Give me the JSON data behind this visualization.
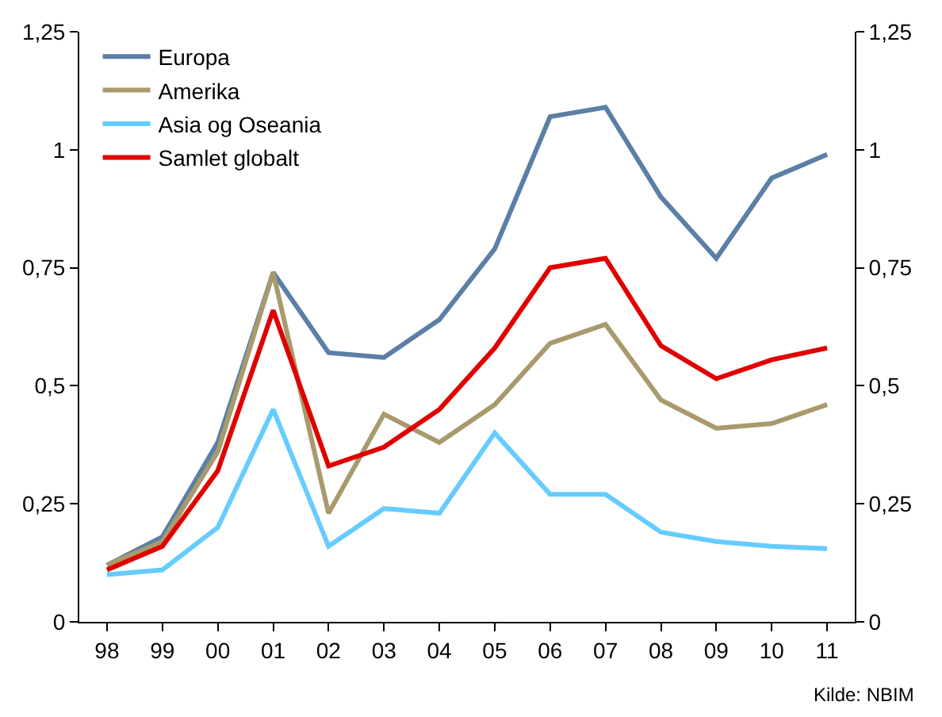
{
  "chart_data": {
    "type": "line",
    "categories": [
      "98",
      "99",
      "00",
      "01",
      "02",
      "03",
      "04",
      "05",
      "06",
      "07",
      "08",
      "09",
      "10",
      "11"
    ],
    "series": [
      {
        "name": "Europa",
        "color": "#5b7fa6",
        "values": [
          0.12,
          0.18,
          0.38,
          0.74,
          0.57,
          0.56,
          0.64,
          0.79,
          1.07,
          1.09,
          0.9,
          0.77,
          0.94,
          0.99
        ]
      },
      {
        "name": "Amerika",
        "color": "#a89a6c",
        "values": [
          0.12,
          0.17,
          0.36,
          0.74,
          0.23,
          0.44,
          0.38,
          0.46,
          0.59,
          0.63,
          0.47,
          0.41,
          0.42,
          0.46
        ]
      },
      {
        "name": "Asia og Oseania",
        "color": "#66ccff",
        "values": [
          0.1,
          0.11,
          0.2,
          0.45,
          0.16,
          0.24,
          0.23,
          0.4,
          0.27,
          0.27,
          0.19,
          0.17,
          0.16,
          0.155
        ]
      },
      {
        "name": "Samlet globalt",
        "color": "#e00000",
        "values": [
          0.11,
          0.16,
          0.32,
          0.66,
          0.33,
          0.37,
          0.45,
          0.58,
          0.75,
          0.77,
          0.585,
          0.515,
          0.555,
          0.58
        ]
      }
    ],
    "ylim": [
      0,
      1.25
    ],
    "yticks": [
      0,
      {
        "value": 0.25,
        "label": "0,25"
      },
      {
        "value": 0.5,
        "label": "0,5"
      },
      {
        "value": 0.75,
        "label": "0,75"
      },
      1,
      {
        "value": 1.25,
        "label": "1,25"
      }
    ],
    "y2lim": [
      0,
      1.25
    ],
    "y2ticks": [
      0,
      {
        "value": 0.25,
        "label": "0,25"
      },
      {
        "value": 0.5,
        "label": "0,5"
      },
      {
        "value": 0.75,
        "label": "0,75"
      },
      1,
      {
        "value": 1.25,
        "label": "1,25"
      }
    ],
    "annotations": [
      "Kilde: NBIM"
    ],
    "legend": "top left",
    "marker": "none",
    "line_style": "solid"
  }
}
